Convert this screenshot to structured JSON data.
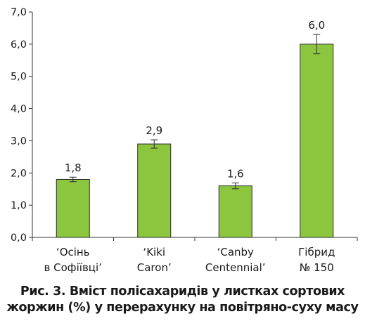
{
  "chart_data": {
    "type": "bar",
    "categories": [
      [
        "‘Осінь",
        "в Софіївці’"
      ],
      [
        "‘Kiki",
        "Caron’"
      ],
      [
        "‘Canby",
        "Centennial’"
      ],
      [
        "Гібрид",
        "№ 150"
      ]
    ],
    "values": [
      1.8,
      2.9,
      1.6,
      6.0
    ],
    "value_labels": [
      "1,8",
      "2,9",
      "1,6",
      "6,0"
    ],
    "error": [
      0.07,
      0.13,
      0.09,
      0.3
    ],
    "y_ticks": [
      0,
      1,
      2,
      3,
      4,
      5,
      6,
      7
    ],
    "y_tick_labels": [
      "0,0",
      "1,0",
      "2,0",
      "3,0",
      "4,0",
      "5,0",
      "6,0",
      "7,0"
    ],
    "ylim": [
      0,
      7
    ],
    "title": "",
    "xlabel": "",
    "ylabel": "",
    "grid": false,
    "legend": "none",
    "colors": {
      "bar_fill": "#8cc63f",
      "bar_stroke": "#2b2b2b",
      "axis": "#333333",
      "text": "#1a1a1a"
    }
  },
  "caption": {
    "line1": "Рис. 3. Вміст полісахаридів у листках сортових",
    "line2": "жоржин (%) у перерахунку на повітряно-суху масу"
  }
}
